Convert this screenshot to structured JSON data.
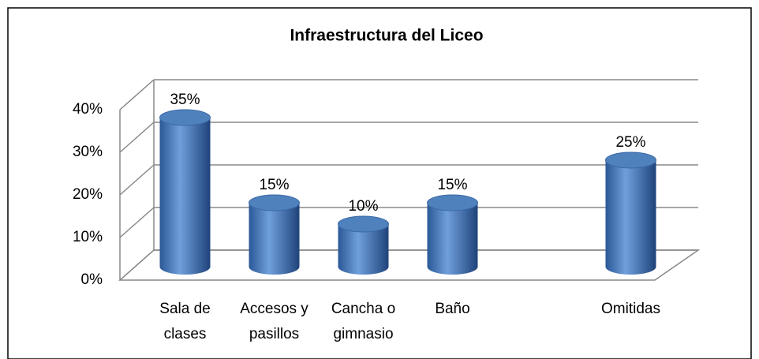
{
  "chart_data": {
    "type": "bar3d",
    "title": "Infraestructura del Liceo",
    "categories": [
      "Sala de clases",
      "Accesos y pasillos",
      "Cancha o gimnasio",
      "Baño",
      null,
      "Omitidas"
    ],
    "values": [
      35,
      15,
      10,
      15,
      null,
      25
    ],
    "value_labels": [
      "35%",
      "15%",
      "10%",
      "15%",
      null,
      "25%"
    ],
    "color": "#4f81bd",
    "ylim": [
      0,
      40
    ],
    "yticks": [
      {
        "value": 0,
        "label": "0%"
      },
      {
        "value": 10,
        "label": "10%"
      },
      {
        "value": 20,
        "label": "20%"
      },
      {
        "value": 30,
        "label": "30%"
      },
      {
        "value": 40,
        "label": "40%"
      }
    ],
    "grid": true
  }
}
